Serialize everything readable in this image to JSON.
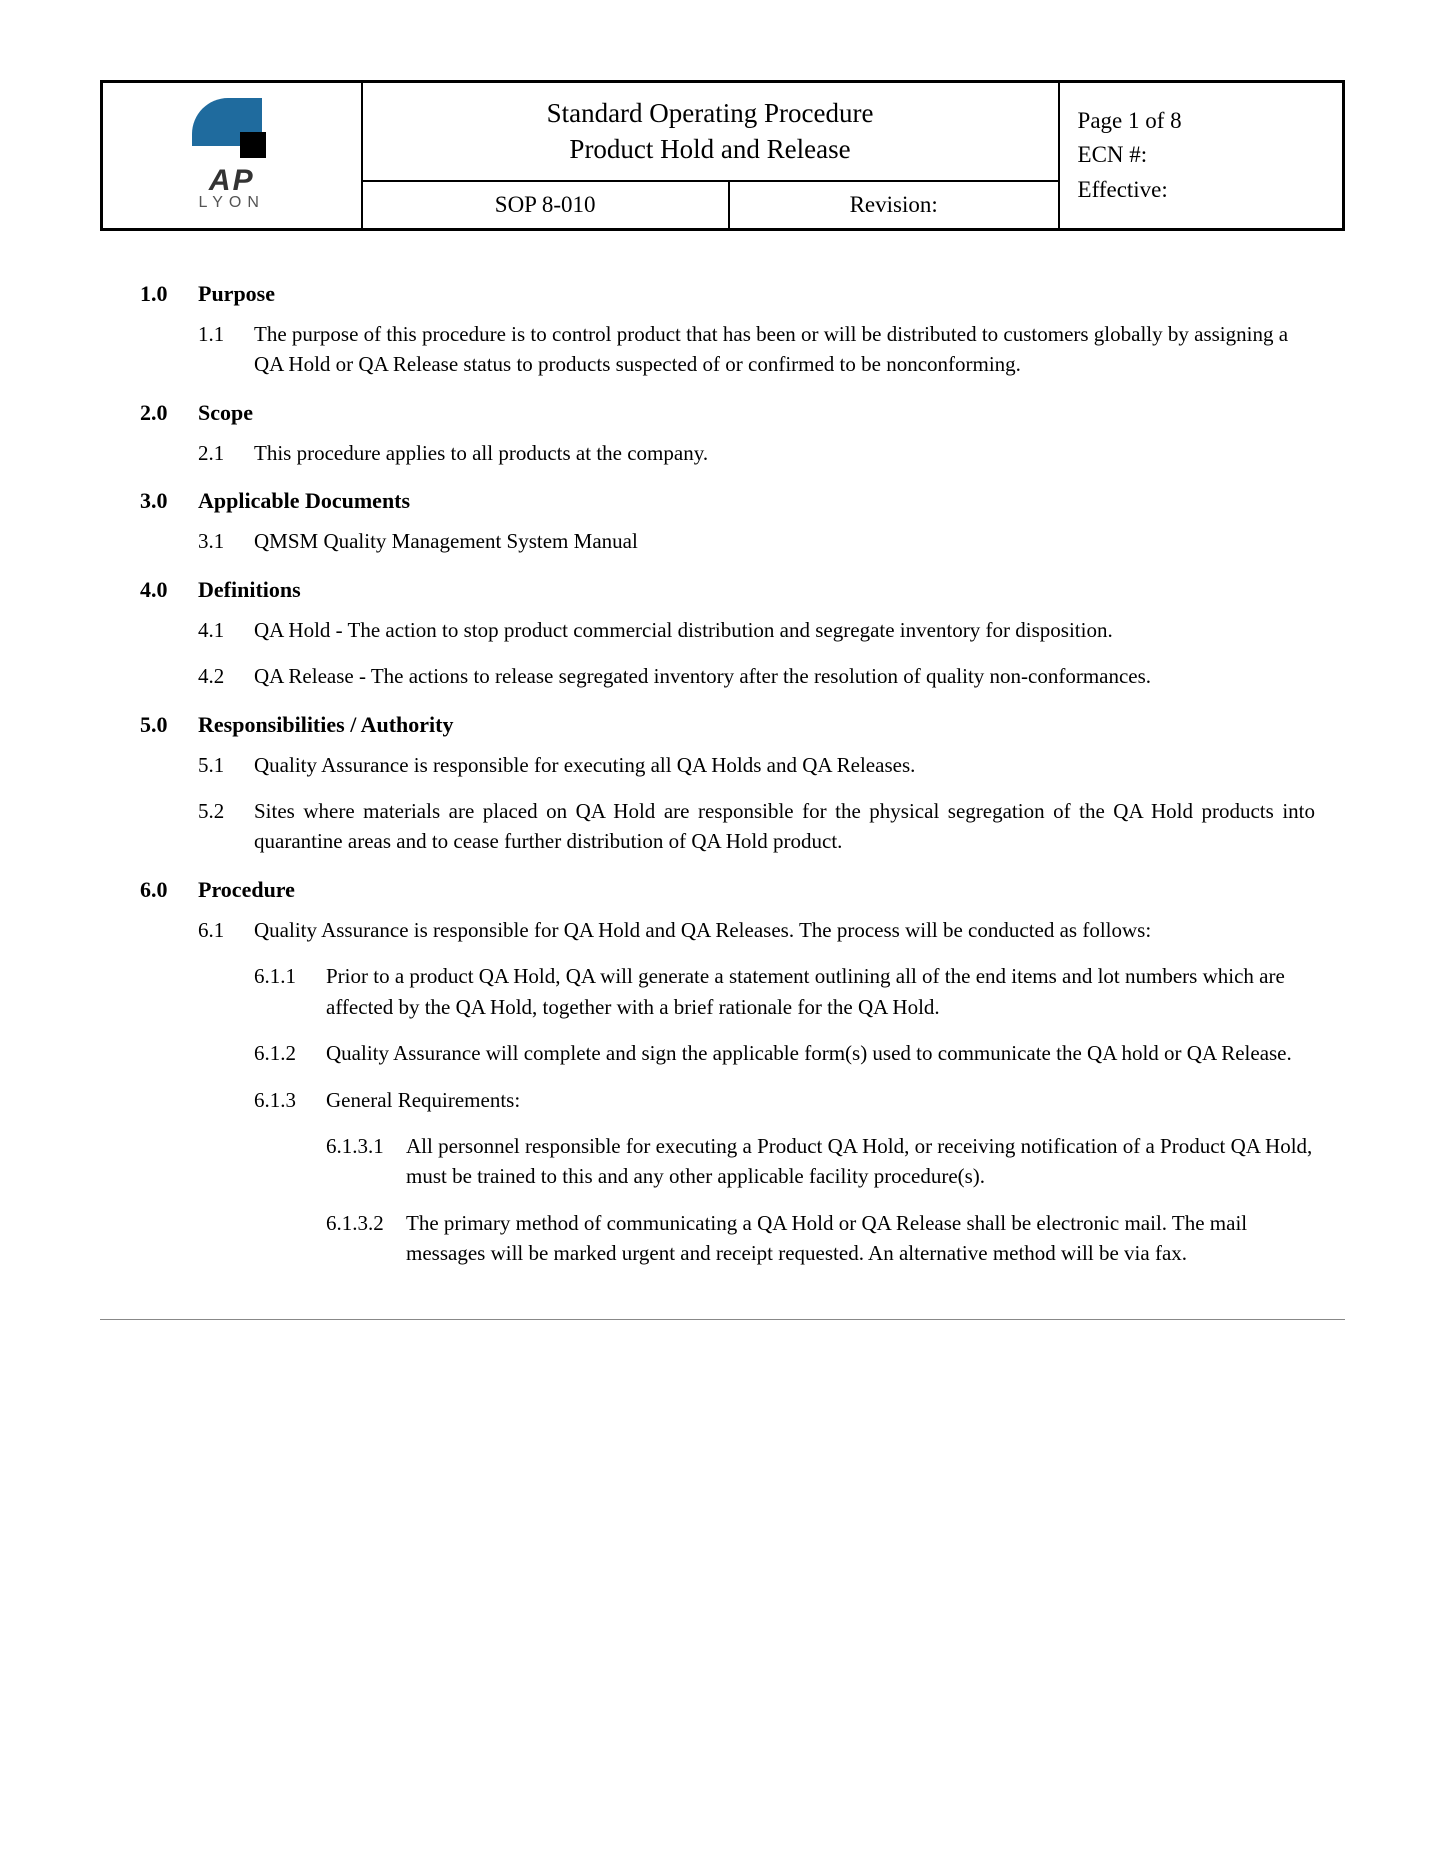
{
  "logo": {
    "line1": "AP",
    "line2": "LYON"
  },
  "header": {
    "title_line1": "Standard Operating Procedure",
    "title_line2": "Product Hold and Release",
    "sop": "SOP 8-010",
    "revision_label": "Revision:",
    "page": "Page  1 of 8",
    "ecn": "ECN #:",
    "effective": "Effective:"
  },
  "sections": {
    "s1": {
      "num": "1.0",
      "title": "Purpose",
      "i1": {
        "num": "1.1",
        "text": "The purpose of this procedure is to control product that has been or will be distributed to customers globally by assigning a QA Hold or QA Release status to products suspected of or confirmed to be nonconforming."
      }
    },
    "s2": {
      "num": "2.0",
      "title": "Scope",
      "i1": {
        "num": "2.1",
        "text": "This procedure applies to all products at the company."
      }
    },
    "s3": {
      "num": "3.0",
      "title": "Applicable Documents",
      "i1": {
        "num": "3.1",
        "text": "QMSM Quality Management System Manual"
      }
    },
    "s4": {
      "num": "4.0",
      "title": "Definitions",
      "i1": {
        "num": "4.1",
        "text": "QA Hold - The action to stop product commercial distribution and segregate inventory for disposition."
      },
      "i2": {
        "num": "4.2",
        "text": "QA Release - The actions to release segregated inventory after the resolution of quality non-conformances."
      }
    },
    "s5": {
      "num": "5.0",
      "title": "Responsibilities / Authority",
      "i1": {
        "num": "5.1",
        "text": "Quality Assurance is responsible for executing all QA Holds and QA Releases."
      },
      "i2": {
        "num": "5.2",
        "text": "Sites where materials are placed on QA Hold are responsible for the physical segregation of the QA Hold products into quarantine areas and to cease further distribution of QA Hold product."
      }
    },
    "s6": {
      "num": "6.0",
      "title": "Procedure",
      "i1": {
        "num": "6.1",
        "text": "Quality Assurance is responsible for QA Hold and QA Releases. The process will be conducted as follows:",
        "j1": {
          "num": "6.1.1",
          "text": "Prior to a product QA Hold, QA will generate a statement outlining all of the end items and lot numbers which are affected by the QA Hold, together with a brief rationale for the QA Hold."
        },
        "j2": {
          "num": "6.1.2",
          "text": "Quality Assurance will complete and sign the applicable form(s) used to communicate the QA hold or QA Release."
        },
        "j3": {
          "num": "6.1.3",
          "text": "General Requirements:",
          "k1": {
            "num": "6.1.3.1",
            "text": "All personnel responsible for executing a Product QA Hold, or receiving notification of a Product QA Hold, must be trained to this and any other applicable facility procedure(s)."
          },
          "k2": {
            "num": "6.1.3.2",
            "text": "The primary method of communicating a QA Hold or QA Release shall be electronic mail.  The mail messages will be marked urgent and receipt requested.  An alternative method will be via fax."
          }
        }
      }
    }
  },
  "colors": {
    "brand_blue": "#1f6b9e",
    "text": "#000000",
    "rule": "#888888"
  }
}
